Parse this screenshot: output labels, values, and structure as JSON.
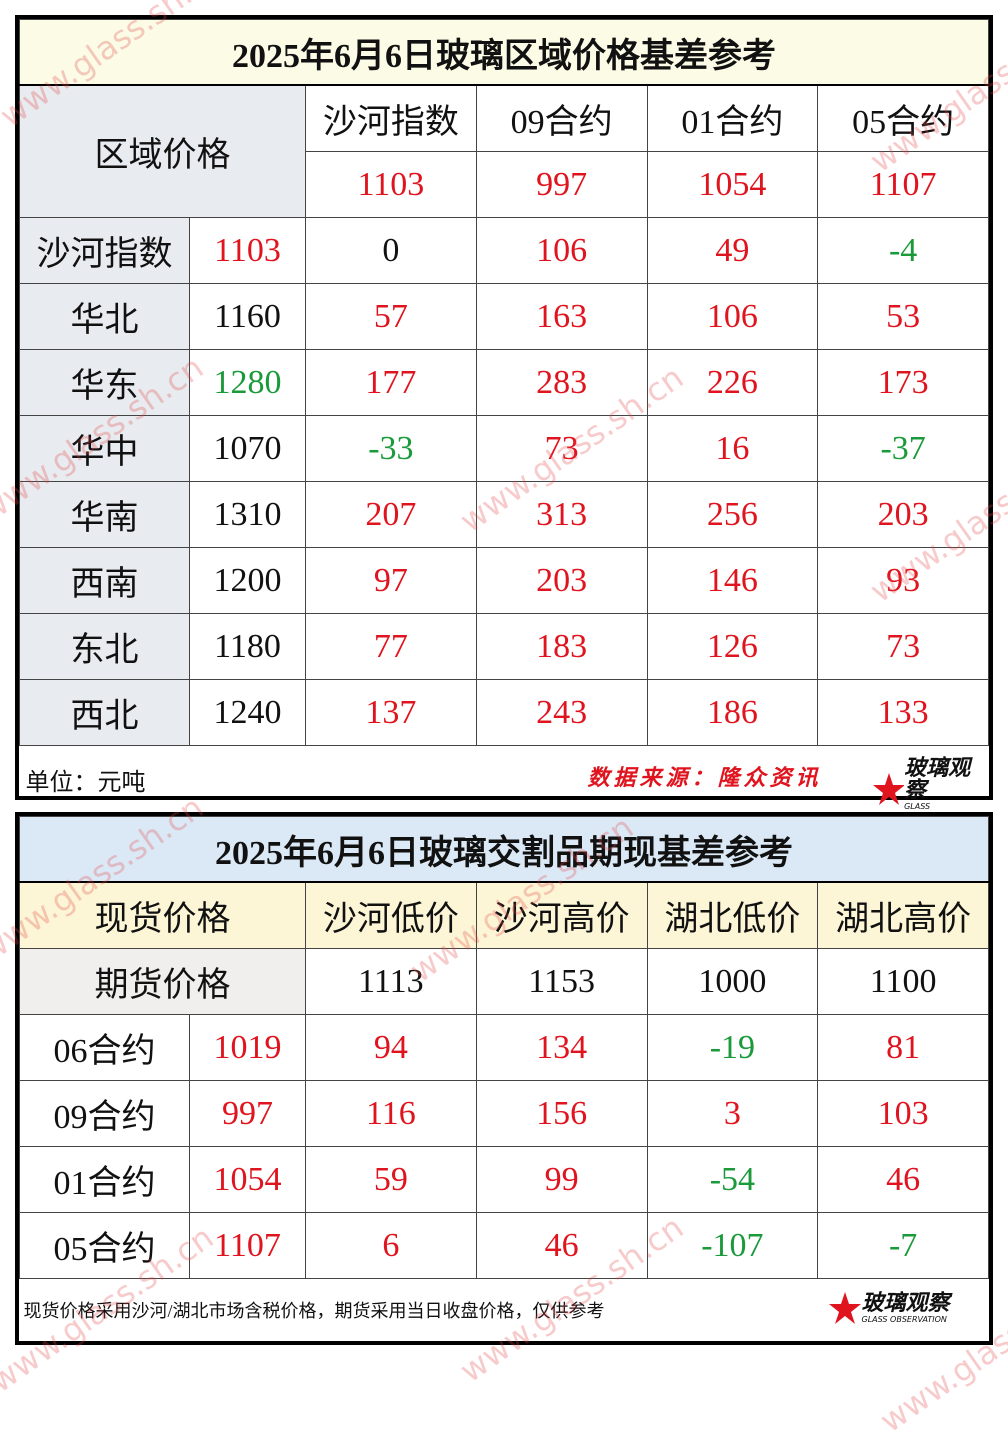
{
  "watermark": "www.glass.sh.cn",
  "logo": {
    "name": "玻璃观察",
    "subtitle": "GLASS OBSERVATION"
  },
  "table1": {
    "title": "2025年6月6日玻璃区域价格基差参考",
    "corner": "区域价格",
    "columns": [
      "沙河指数",
      "09合约",
      "01合约",
      "05合约"
    ],
    "column_values": [
      1103,
      997,
      1054,
      1107
    ],
    "rows": [
      [
        "沙河指数",
        1103,
        0,
        106,
        49,
        -4
      ],
      [
        "华北",
        1160,
        57,
        163,
        106,
        53
      ],
      [
        "华东",
        1280,
        177,
        283,
        226,
        173
      ],
      [
        "华中",
        1070,
        -33,
        73,
        16,
        -37
      ],
      [
        "华南",
        1310,
        207,
        313,
        256,
        203
      ],
      [
        "西南",
        1200,
        97,
        203,
        146,
        93
      ],
      [
        "东北",
        1180,
        77,
        183,
        126,
        73
      ],
      [
        "西北",
        1240,
        137,
        243,
        186,
        133
      ]
    ],
    "unit": "单位：元吨",
    "source": "数据来源：隆众资讯"
  },
  "table2": {
    "title": "2025年6月6日玻璃交割品期现基差参考",
    "corner": "现货价格",
    "columns": [
      "沙河低价",
      "沙河高价",
      "湖北低价",
      "湖北高价"
    ],
    "row_label": "期货价格",
    "column_values": [
      1113,
      1153,
      1000,
      1100
    ],
    "rows": [
      [
        "06合约",
        1019,
        94,
        134,
        -19,
        81
      ],
      [
        "09合约",
        997,
        116,
        156,
        3,
        103
      ],
      [
        "01合约",
        1054,
        59,
        99,
        -54,
        46
      ],
      [
        "05合约",
        1107,
        6,
        46,
        -107,
        -7
      ]
    ],
    "note": "现货价格采用沙河/湖北市场含税价格，期货采用当日收盘价格，仅供参考"
  }
}
